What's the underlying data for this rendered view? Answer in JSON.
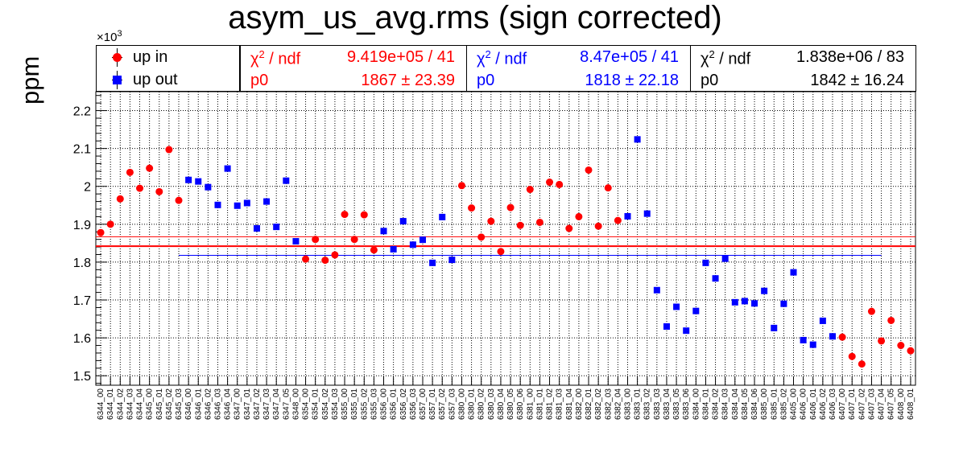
{
  "title": "asym_us_avg.rms (sign corrected)",
  "colors": {
    "red": "#ff0000",
    "blue": "#0000ff",
    "black": "#000000"
  },
  "chart_data": {
    "type": "scatter",
    "title": "asym_us_avg.rms (sign corrected)",
    "ylabel": "ppm",
    "y_multiplier": "×10",
    "y_multiplier_exp": "3",
    "ylim": [
      1.475,
      2.25
    ],
    "yticks": [
      1.5,
      1.6,
      1.7,
      1.8,
      1.9,
      2.0,
      2.1,
      2.2
    ],
    "ytick_labels": [
      "1.5",
      "1.6",
      "1.7",
      "1.8",
      "1.9",
      "2",
      "2.1",
      "2.2"
    ],
    "grid": true,
    "legend_position": "top-left",
    "categories": [
      "6344_00",
      "6344_01",
      "6344_02",
      "6344_03",
      "6344_04",
      "6345_00",
      "6345_01",
      "6345_02",
      "6345_03",
      "6346_00",
      "6346_01",
      "6346_02",
      "6346_03",
      "6346_04",
      "6347_00",
      "6347_01",
      "6347_02",
      "6347_03",
      "6347_04",
      "6347_05",
      "6348_00",
      "6354_00",
      "6354_01",
      "6354_02",
      "6354_03",
      "6355_00",
      "6355_01",
      "6355_02",
      "6355_03",
      "6356_00",
      "6356_01",
      "6356_02",
      "6356_03",
      "6357_00",
      "6357_01",
      "6357_02",
      "6357_03",
      "6380_00",
      "6380_01",
      "6380_02",
      "6380_03",
      "6380_04",
      "6380_05",
      "6380_06",
      "6381_00",
      "6381_01",
      "6381_02",
      "6381_03",
      "6381_04",
      "6382_00",
      "6382_01",
      "6382_02",
      "6382_03",
      "6382_04",
      "6383_00",
      "6383_01",
      "6383_02",
      "6383_03",
      "6383_04",
      "6383_05",
      "6383_06",
      "6384_00",
      "6384_01",
      "6384_02",
      "6384_03",
      "6384_04",
      "6384_05",
      "6384_06",
      "6385_00",
      "6385_01",
      "6385_02",
      "6405_00",
      "6406_00",
      "6406_01",
      "6406_02",
      "6406_03",
      "6407_00",
      "6407_01",
      "6407_02",
      "6407_03",
      "6407_04",
      "6407_05",
      "6408_00",
      "6408_01"
    ],
    "series": [
      {
        "name": "up in",
        "color": "#ff0000",
        "marker": "circle",
        "points": [
          [
            0,
            1.878
          ],
          [
            1,
            1.9
          ],
          [
            2,
            1.967
          ],
          [
            3,
            2.037
          ],
          [
            4,
            1.995
          ],
          [
            5,
            2.048
          ],
          [
            6,
            1.986
          ],
          [
            7,
            2.097
          ],
          [
            8,
            1.963
          ],
          [
            21,
            1.808
          ],
          [
            22,
            1.86
          ],
          [
            23,
            1.805
          ],
          [
            24,
            1.819
          ],
          [
            25,
            1.926
          ],
          [
            26,
            1.86
          ],
          [
            27,
            1.925
          ],
          [
            28,
            1.832
          ],
          [
            37,
            2.002
          ],
          [
            38,
            1.943
          ],
          [
            39,
            1.866
          ],
          [
            40,
            1.908
          ],
          [
            41,
            1.828
          ],
          [
            42,
            1.944
          ],
          [
            43,
            1.897
          ],
          [
            44,
            1.992
          ],
          [
            45,
            1.905
          ],
          [
            46,
            2.011
          ],
          [
            47,
            2.005
          ],
          [
            48,
            1.889
          ],
          [
            49,
            1.92
          ],
          [
            50,
            2.043
          ],
          [
            51,
            1.895
          ],
          [
            52,
            1.996
          ],
          [
            53,
            1.91
          ],
          [
            76,
            1.602
          ],
          [
            77,
            1.551
          ],
          [
            78,
            1.531
          ],
          [
            79,
            1.67
          ],
          [
            80,
            1.592
          ],
          [
            81,
            1.646
          ],
          [
            82,
            1.58
          ],
          [
            83,
            1.566
          ]
        ],
        "fit_p0": 1.867
      },
      {
        "name": "up out",
        "color": "#0000ff",
        "marker": "square",
        "points": [
          [
            9,
            2.017
          ],
          [
            10,
            2.013
          ],
          [
            11,
            1.998
          ],
          [
            12,
            1.951
          ],
          [
            13,
            2.047
          ],
          [
            14,
            1.949
          ],
          [
            15,
            1.956
          ],
          [
            16,
            1.889
          ],
          [
            17,
            1.96
          ],
          [
            18,
            1.893
          ],
          [
            19,
            2.015
          ],
          [
            20,
            1.855
          ],
          [
            29,
            1.882
          ],
          [
            30,
            1.834
          ],
          [
            31,
            1.908
          ],
          [
            32,
            1.846
          ],
          [
            33,
            1.859
          ],
          [
            34,
            1.798
          ],
          [
            35,
            1.919
          ],
          [
            36,
            1.806
          ],
          [
            54,
            1.921
          ],
          [
            55,
            2.124
          ],
          [
            56,
            1.928
          ],
          [
            57,
            1.726
          ],
          [
            58,
            1.63
          ],
          [
            59,
            1.682
          ],
          [
            60,
            1.619
          ],
          [
            61,
            1.671
          ],
          [
            62,
            1.798
          ],
          [
            63,
            1.757
          ],
          [
            64,
            1.809
          ],
          [
            65,
            1.694
          ],
          [
            66,
            1.697
          ],
          [
            67,
            1.691
          ],
          [
            68,
            1.724
          ],
          [
            69,
            1.626
          ],
          [
            70,
            1.69
          ],
          [
            71,
            1.773
          ],
          [
            72,
            1.594
          ],
          [
            73,
            1.582
          ],
          [
            74,
            1.645
          ],
          [
            75,
            1.604
          ]
        ],
        "fit_p0": 1.818
      }
    ],
    "combined_fit_p0": 1.842
  },
  "legend": {
    "items": [
      {
        "label": "up in"
      },
      {
        "label": "up out"
      }
    ]
  },
  "stats": [
    {
      "chi_label": "χ",
      "chi_sup": "2",
      "chi_rest": " / ndf",
      "chi_value": "9.419e+05 / 41",
      "p0_label": "p0",
      "p0_value": "1867",
      "pm": "±",
      "p0_err": "23.39"
    },
    {
      "chi_label": "χ",
      "chi_sup": "2",
      "chi_rest": " / ndf",
      "chi_value": "8.47e+05 / 41",
      "p0_label": "p0",
      "p0_value": "1818",
      "pm": "±",
      "p0_err": "22.18"
    },
    {
      "chi_label": "χ",
      "chi_sup": "2",
      "chi_rest": " / ndf",
      "chi_value": "1.838e+06 / 83",
      "p0_label": "p0",
      "p0_value": "1842",
      "pm": "±",
      "p0_err": "16.24"
    }
  ]
}
